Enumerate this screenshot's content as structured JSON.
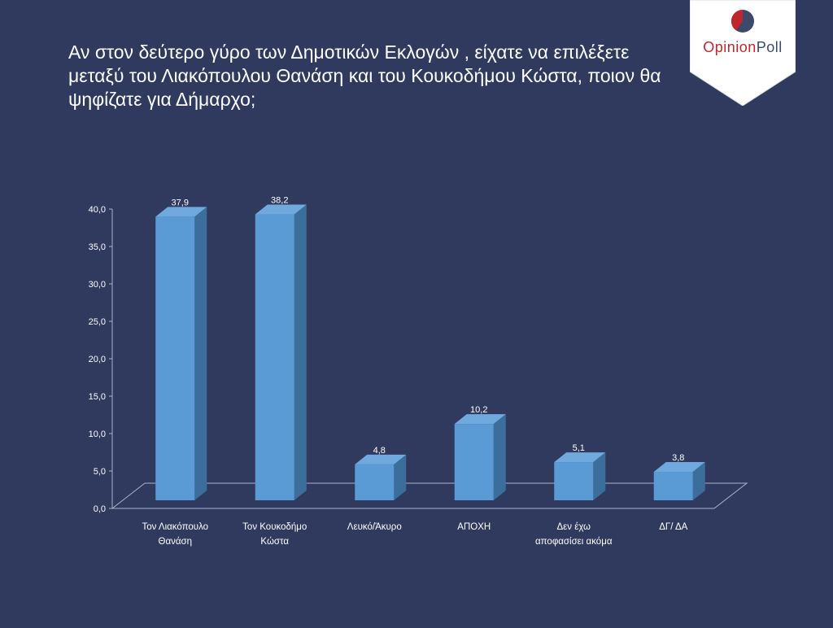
{
  "title": "Αν στον δεύτερο γύρο των Δημοτικών Εκλογών , είχατε να επιλέξετε\nμεταξύ του Λιακόπουλου Θανάση και του Κουκοδήμου Κώστα, ποιον θα\nψηφίζατε  για Δήμαρχο;",
  "logo": {
    "part1": "Opinion",
    "part2": "Poll",
    "icon": "pie-logo-icon"
  },
  "colors": {
    "background": "#2f3a5e",
    "bar_front": "#5b9bd5",
    "bar_side": "#3c6e9c",
    "bar_top": "#6fa9de"
  },
  "chart_data": {
    "type": "bar",
    "categories": [
      [
        "Τον Λιακόπουλο",
        "Θανάση"
      ],
      [
        "Τον Κουκοδήμο",
        "Κώστα"
      ],
      [
        "Λευκό/Άκυρο"
      ],
      [
        "ΑΠΟΧΗ"
      ],
      [
        "Δεν έχω",
        "αποφασίσει ακόμα"
      ],
      [
        "ΔΓ/ ΔΑ"
      ]
    ],
    "values": [
      37.9,
      38.2,
      4.8,
      10.2,
      5.1,
      3.8
    ],
    "value_labels": [
      "37,9",
      "38,2",
      "4,8",
      "10,2",
      "5,1",
      "3,8"
    ],
    "y_ticks": [
      "0,0",
      "5,0",
      "10,0",
      "15,0",
      "20,0",
      "25,0",
      "30,0",
      "35,0",
      "40,0"
    ],
    "ylim": [
      0,
      40
    ],
    "grid": false,
    "legend": "none",
    "style": "3d-column"
  }
}
